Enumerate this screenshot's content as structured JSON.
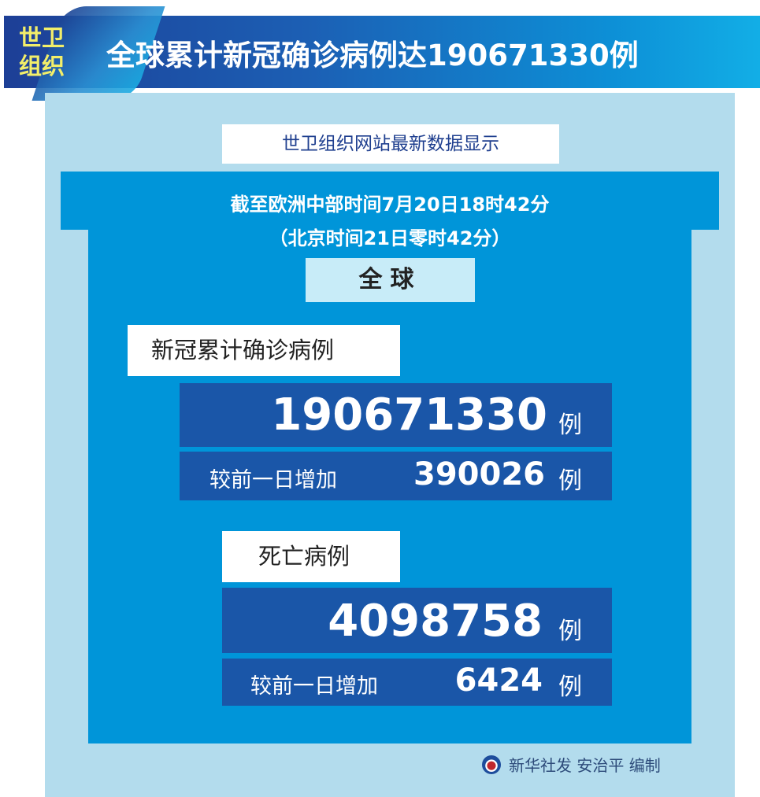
{
  "header": {
    "tag_line1": "世卫",
    "tag_line2": "组织",
    "title": "全球累计新冠确诊病例达190671330例"
  },
  "subtitle": "世卫组织网站最新数据显示",
  "time": {
    "line1": "截至欧洲中部时间7月20日18时42分",
    "line2": "（北京时间21日零时42分）"
  },
  "scope": "全球",
  "cases": {
    "label": "新冠累计确诊病例",
    "total": "190671330",
    "unit": "例",
    "increase_label": "较前一日增加",
    "increase": "390026"
  },
  "deaths": {
    "label": "死亡病例",
    "total": "4098758",
    "unit": "例",
    "increase_label": "较前一日增加",
    "increase": "6424"
  },
  "footer": {
    "credit": "新华社发 安治平 编制"
  },
  "colors": {
    "banner": "#1c5fb4",
    "panel": "#b3dced",
    "body": "#0095d9",
    "value_box": "#1a56a8",
    "tag": "#f2ee6a"
  }
}
